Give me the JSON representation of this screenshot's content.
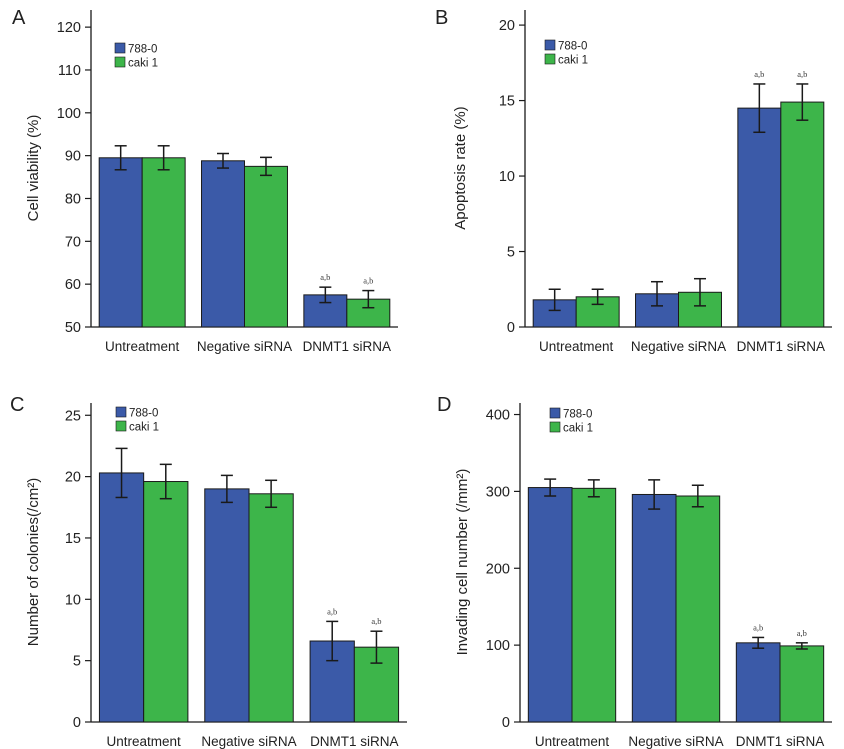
{
  "colors": {
    "788-0": "#3b5aa8",
    "caki 1": "#3db54a"
  },
  "chart_data": [
    {
      "panel": "A",
      "type": "bar",
      "categories": [
        "Untreatment",
        "Negative siRNA",
        "DNMT1 siRNA"
      ],
      "series": [
        {
          "name": "788-0",
          "values": [
            89.5,
            88.8,
            57.5
          ],
          "errors": [
            2.8,
            1.7,
            1.8
          ]
        },
        {
          "name": "caki 1",
          "values": [
            89.5,
            87.5,
            56.5
          ],
          "errors": [
            2.8,
            2.1,
            2.0
          ]
        }
      ],
      "significance": [
        "",
        "",
        "a,b"
      ],
      "ylabel": "Cell viability (%)",
      "ylim": [
        50,
        124
      ],
      "yticks": [
        50,
        60,
        70,
        80,
        90,
        100,
        110,
        120
      ],
      "legend": "top-left"
    },
    {
      "panel": "B",
      "type": "bar",
      "categories": [
        "Untreatment",
        "Negative siRNA",
        "DNMT1 siRNA"
      ],
      "series": [
        {
          "name": "788-0",
          "values": [
            1.8,
            2.2,
            14.5
          ],
          "errors": [
            0.7,
            0.8,
            1.6
          ]
        },
        {
          "name": "caki 1",
          "values": [
            2.0,
            2.3,
            14.9
          ],
          "errors": [
            0.5,
            0.9,
            1.2
          ]
        }
      ],
      "significance": [
        "",
        "",
        "a,b"
      ],
      "ylabel": "Apoptosis rate (%)",
      "ylim": [
        0,
        21
      ],
      "yticks": [
        0,
        5,
        10,
        15,
        20
      ],
      "legend": "top-left"
    },
    {
      "panel": "C",
      "type": "bar",
      "categories": [
        "Untreatment",
        "Negative siRNA",
        "DNMT1 siRNA"
      ],
      "series": [
        {
          "name": "788-0",
          "values": [
            20.3,
            19.0,
            6.6
          ],
          "errors": [
            2.0,
            1.1,
            1.6
          ]
        },
        {
          "name": "caki 1",
          "values": [
            19.6,
            18.6,
            6.1
          ],
          "errors": [
            1.4,
            1.1,
            1.3
          ]
        }
      ],
      "significance": [
        "",
        "",
        "a,b"
      ],
      "ylabel": "Number of colonies(/cm²)",
      "ylim": [
        0,
        26
      ],
      "yticks": [
        0,
        5,
        10,
        15,
        20,
        25
      ],
      "legend": "top-left"
    },
    {
      "panel": "D",
      "type": "bar",
      "categories": [
        "Untreatment",
        "Negative siRNA",
        "DNMT1 siRNA"
      ],
      "series": [
        {
          "name": "788-0",
          "values": [
            305,
            296,
            103
          ],
          "errors": [
            11,
            19,
            7
          ]
        },
        {
          "name": "caki 1",
          "values": [
            304,
            294,
            99
          ],
          "errors": [
            11,
            14,
            4
          ]
        }
      ],
      "significance": [
        "",
        "",
        "a,b"
      ],
      "ylabel": "Invading cell number (/mm²)",
      "ylim": [
        0,
        415
      ],
      "yticks": [
        0,
        100,
        200,
        300,
        400
      ],
      "legend": "top-left"
    }
  ]
}
